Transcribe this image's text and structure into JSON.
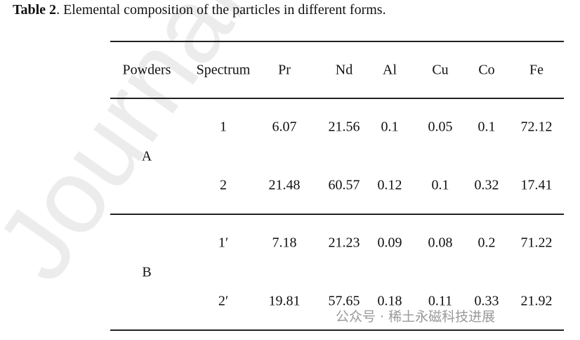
{
  "title": {
    "label": "Table 2",
    "text": ". Elemental composition of the particles in different forms."
  },
  "table": {
    "header": [
      "Powders",
      "Spectrum",
      "Pr",
      "Nd",
      "Al",
      "Cu",
      "Co",
      "Fe"
    ],
    "groups": [
      {
        "powder": "A",
        "rows": [
          [
            "1",
            "6.07",
            "21.56",
            "0.1",
            "0.05",
            "0.1",
            "72.12"
          ],
          [
            "2",
            "21.48",
            "60.57",
            "0.12",
            "0.1",
            "0.32",
            "17.41"
          ]
        ]
      },
      {
        "powder": "B",
        "rows": [
          [
            "1′",
            "7.18",
            "21.23",
            "0.09",
            "0.08",
            "0.2",
            "71.22"
          ],
          [
            "2′",
            "19.81",
            "57.65",
            "0.18",
            "0.11",
            "0.33",
            "21.92"
          ]
        ]
      }
    ]
  },
  "watermark": "Journal P",
  "source_badge": "公众号 · 稀土永磁科技进展"
}
